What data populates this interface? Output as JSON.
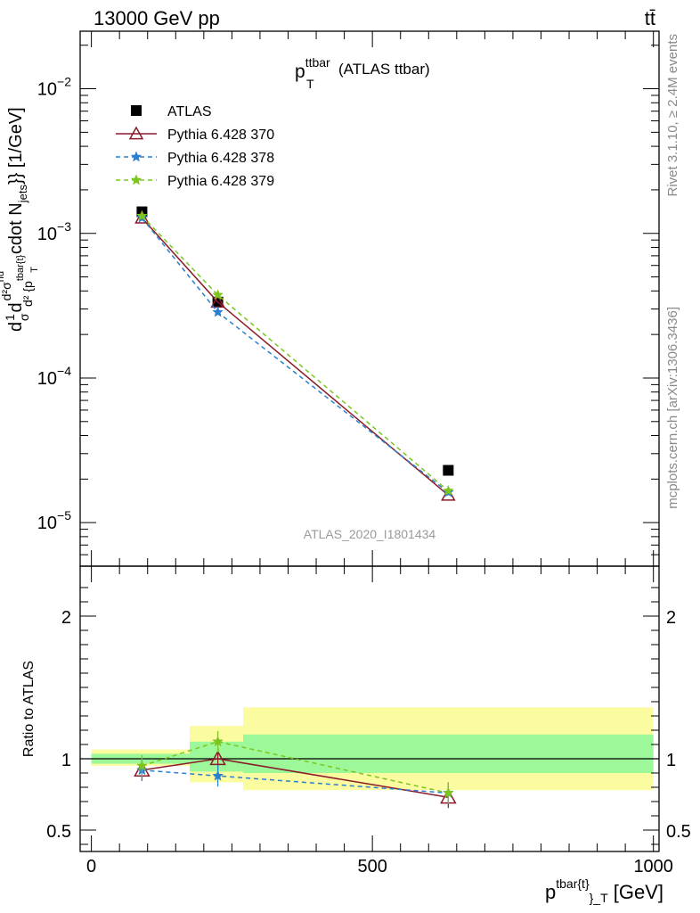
{
  "header": {
    "left": "13000 GeV pp",
    "right": "tt̄"
  },
  "side_texts": {
    "rivet": "Rivet 3.1.10, ≥ 2.4M events",
    "mcplots": "mcplots.cern.ch [arXiv:1306.3436]"
  },
  "watermark": "ATLAS_2020_I1801434",
  "chart_data": [
    {
      "type": "line",
      "panel": "main",
      "title": {
        "main": "p",
        "sup": "ttbar",
        "sub": "T",
        "rest": " (ATLAS ttbar)"
      },
      "ylabel": "d\\frac{1}{\\sigma}d\\frac{d^{2}\\sigma^{nd}}{d^{2}{p^{tbar{t}}}_{T}} cdot N_{jets}}} [1/GeV]",
      "y_log": true,
      "ylim": [
        5e-06,
        0.025
      ],
      "y_ticks": [
        {
          "value": 1e-05,
          "base": "10",
          "exp": "−5"
        },
        {
          "value": 0.0001,
          "base": "10",
          "exp": "−4"
        },
        {
          "value": 0.001,
          "base": "10",
          "exp": "−3"
        },
        {
          "value": 0.01,
          "base": "10",
          "exp": "−2"
        }
      ],
      "x": [
        90,
        225,
        635
      ],
      "series": [
        {
          "name": "ATLAS",
          "values": [
            0.00141,
            0.000335,
            2.3e-05
          ],
          "color": "#000000",
          "marker": "square"
        },
        {
          "name": "Pythia 6.428 370",
          "values": [
            0.00128,
            0.000335,
            1.55e-05
          ],
          "color": "#8b1a2a",
          "marker": "triangle-open",
          "dash": "solid"
        },
        {
          "name": "Pythia 6.428 378",
          "values": [
            0.00128,
            0.000285,
            1.62e-05
          ],
          "color": "#2a80d0",
          "marker": "star",
          "dash": "dashed"
        },
        {
          "name": "Pythia 6.428 379",
          "values": [
            0.00132,
            0.000375,
            1.66e-05
          ],
          "color": "#7cc51e",
          "marker": "star",
          "dash": "dashed"
        }
      ]
    },
    {
      "type": "line",
      "panel": "ratio",
      "ylabel": "Ratio to ATLAS",
      "xlabel": {
        "base": "p",
        "sup": "tbar{t}",
        "sub": "}_T",
        "rest": " [GeV]"
      },
      "xlim": [
        -20,
        1010
      ],
      "x_ticks": [
        0,
        500,
        1000
      ],
      "ylim": [
        0.35,
        2.35
      ],
      "y_ticks": [
        0.5,
        1,
        2
      ],
      "bands": [
        {
          "xlo": 0,
          "xhi": 175,
          "inner": [
            0.965,
            1.035
          ],
          "outer": [
            0.95,
            1.065
          ]
        },
        {
          "xlo": 175,
          "xhi": 270,
          "inner": [
            0.91,
            1.12
          ],
          "outer": [
            0.835,
            1.23
          ]
        },
        {
          "xlo": 270,
          "xhi": 1000,
          "inner": [
            0.9,
            1.17
          ],
          "outer": [
            0.78,
            1.36
          ]
        }
      ],
      "x": [
        90,
        225,
        635
      ],
      "series": [
        {
          "name": "Pythia 6.428 370",
          "values": [
            0.92,
            1.0,
            0.73
          ],
          "color": "#8b1a2a",
          "marker": "triangle-open",
          "dash": "solid"
        },
        {
          "name": "Pythia 6.428 378",
          "values": [
            0.92,
            0.88,
            0.76
          ],
          "color": "#2a80d0",
          "marker": "star",
          "dash": "dashed"
        },
        {
          "name": "Pythia 6.428 379",
          "values": [
            0.95,
            1.12,
            0.76
          ],
          "color": "#7cc51e",
          "marker": "star",
          "dash": "dashed"
        }
      ]
    }
  ]
}
